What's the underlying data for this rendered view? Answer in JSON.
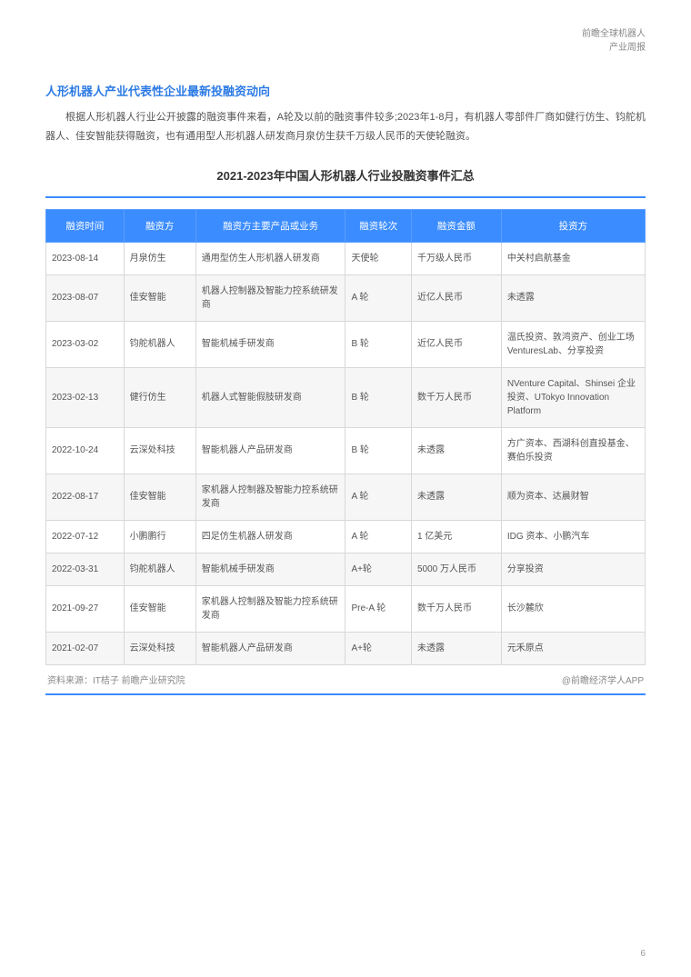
{
  "header": {
    "line1": "前瞻全球机器人",
    "line2": "产业周报"
  },
  "section_title": "人形机器人产业代表性企业最新投融资动向",
  "body_text": "根据人形机器人行业公开披露的融资事件来看，A轮及以前的融资事件较多;2023年1-8月，有机器人零部件厂商如健行仿生、钧舵机器人、佳安智能获得融资，也有通用型人形机器人研发商月泉仿生获千万级人民币的天使轮融资。",
  "table": {
    "title": "2021-2023年中国人形机器人行业投融资事件汇总",
    "columns": [
      "融资时间",
      "融资方",
      "融资方主要产品或业务",
      "融资轮次",
      "融资金额",
      "投资方"
    ],
    "rows": [
      [
        "2023-08-14",
        "月泉仿生",
        "通用型仿生人形机器人研发商",
        "天使轮",
        "千万级人民币",
        "中关村启航基金"
      ],
      [
        "2023-08-07",
        "佳安智能",
        "机器人控制器及智能力控系统研发商",
        "A 轮",
        "近亿人民币",
        "未透露"
      ],
      [
        "2023-03-02",
        "钧舵机器人",
        "智能机械手研发商",
        "B 轮",
        "近亿人民币",
        "温氏投资、敦鸿资产、创业工场 VenturesLab、分享投资"
      ],
      [
        "2023-02-13",
        "健行仿生",
        "机器人式智能假肢研发商",
        "B 轮",
        "数千万人民币",
        "NVenture Capital、Shinsei 企业投资、UTokyo Innovation Platform"
      ],
      [
        "2022-10-24",
        "云深处科技",
        "智能机器人产品研发商",
        "B 轮",
        "未透露",
        "方广资本、西湖科创直投基金、赛伯乐投资"
      ],
      [
        "2022-08-17",
        "佳安智能",
        "家机器人控制器及智能力控系统研发商",
        "A 轮",
        "未透露",
        "顺为资本、达晨财智"
      ],
      [
        "2022-07-12",
        "小鹏鹏行",
        "四足仿生机器人研发商",
        "A 轮",
        "1 亿美元",
        "IDG 资本、小鹏汽车"
      ],
      [
        "2022-03-31",
        "钧舵机器人",
        "智能机械手研发商",
        "A+轮",
        "5000 万人民币",
        "分享投资"
      ],
      [
        "2021-09-27",
        "佳安智能",
        "家机器人控制器及智能力控系统研发商",
        "Pre-A 轮",
        "数千万人民币",
        "长沙麓欣"
      ],
      [
        "2021-02-07",
        "云深处科技",
        "智能机器人产品研发商",
        "A+轮",
        "未透露",
        "元禾原点"
      ]
    ],
    "header_bg": "#3b8cff",
    "header_fg": "#ffffff",
    "row_alt_bg": "#f6f6f6",
    "border_color": "#d8d8d8",
    "accent_color": "#3b8cff"
  },
  "source": {
    "left": "资料来源：IT桔子 前瞻产业研究院",
    "right": "@前瞻经济学人APP"
  },
  "page_number": "6"
}
